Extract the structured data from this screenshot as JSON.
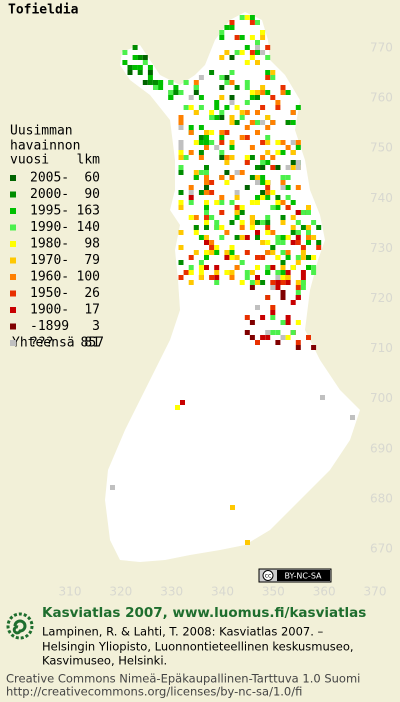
{
  "title": "Tofieldia",
  "legend": {
    "heading": [
      "Uusimman",
      "havainnon",
      "vuosi"
    ],
    "count_heading": "lkm",
    "rows": [
      {
        "label": "2005-",
        "count": 60,
        "color": "#006400"
      },
      {
        "label": "2000-",
        "count": 90,
        "color": "#008c00"
      },
      {
        "label": "1995-",
        "count": 163,
        "color": "#00c000"
      },
      {
        "label": "1990-",
        "count": 140,
        "color": "#4cf04c"
      },
      {
        "label": "1980-",
        "count": 98,
        "color": "#ffff00"
      },
      {
        "label": "1970-",
        "count": 79,
        "color": "#ffc800"
      },
      {
        "label": "1960-",
        "count": 100,
        "color": "#ff8000"
      },
      {
        "label": "1950-",
        "count": 26,
        "color": "#e83000"
      },
      {
        "label": "1900-",
        "count": 17,
        "color": "#c80000"
      },
      {
        "label": "-1899",
        "count": 3,
        "color": "#800000"
      },
      {
        "label": "???",
        "count": 81,
        "color": "#c0c0c0"
      }
    ],
    "total_label": "Yhteensä",
    "total": 857
  },
  "axes": {
    "x_ticks": [
      310,
      320,
      330,
      340,
      350,
      360,
      370
    ],
    "y_ticks": [
      670,
      680,
      690,
      700,
      710,
      720,
      730,
      740,
      750,
      760,
      770
    ]
  },
  "badge": "BY-NC-SA",
  "footer": {
    "site": "Kasviatlas 2007, www.luomus.fi/kasviatlas",
    "citation": [
      "Lampinen, R. & Lahti, T. 2008: Kasviatlas 2007. –",
      "Helsingin Yliopisto, Luonnontieteellinen keskusmuseo,",
      "Kasvimuseo, Helsinki."
    ],
    "license": [
      "Creative Commons Nimeä-Epäkaupallinen-Tarttuva 1.0 Suomi",
      "http://creativecommons.org/licenses/by-nc-sa/1.0/fi"
    ]
  }
}
